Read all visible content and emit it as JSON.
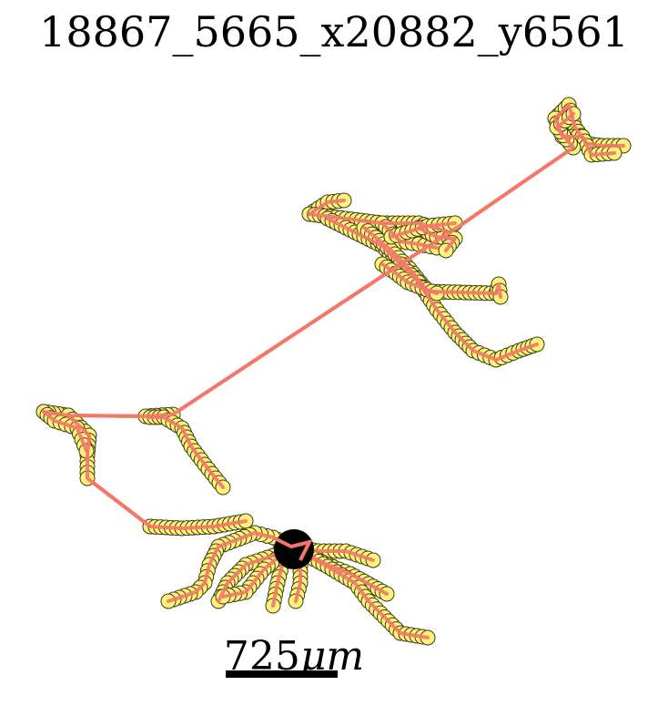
{
  "title": "18867_5665_x20882_y6561",
  "scale_bar": {
    "label": "725",
    "unit": "μm"
  },
  "colors": {
    "edge": "#f4776a",
    "node_fill": "#fff27a",
    "node_stroke": "#3d3d1a",
    "soma": "#000000",
    "background": "#ffffff"
  }
}
